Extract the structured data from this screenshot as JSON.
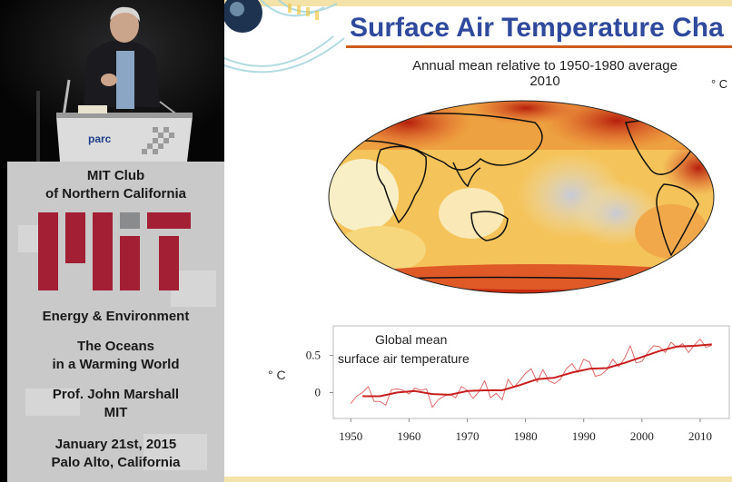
{
  "sidebar": {
    "club_line1": "MIT Club",
    "club_line2": "of Northern California",
    "series": "Energy & Environment",
    "talk_line1": "The Oceans",
    "talk_line2": "in a Warming World",
    "speaker": "Prof. John Marshall",
    "affiliation": "MIT",
    "date": "January 21st, 2015",
    "location": "Palo Alto, California"
  },
  "podium": {
    "logo": "parc"
  },
  "slide": {
    "title": "Surface Air Temperature Cha",
    "map_caption_line1": "Annual mean relative to 1950-1980 average",
    "map_caption_line2": "2010",
    "map_unit": "° C",
    "colors": {
      "title": "#2f4a9c",
      "rule": "#d05b1d",
      "warm": "#d23a12",
      "cool": "#b8b8cc"
    }
  },
  "chart_data": {
    "type": "line",
    "title": "",
    "annotation_line1": "Global mean",
    "annotation_line2": "surface air temperature",
    "ylabel": "° C",
    "xlabel": "",
    "xlim": [
      1947,
      2015
    ],
    "ylim": [
      -0.35,
      0.9
    ],
    "x_ticks": [
      "1950",
      "1960",
      "1970",
      "1980",
      "1990",
      "2000",
      "2010"
    ],
    "y_ticks": [
      "0.5",
      "0"
    ],
    "series": [
      {
        "name": "",
        "style": "annual",
        "color": "#e06a6a",
        "x": [
          1950,
          1951,
          1952,
          1953,
          1954,
          1955,
          1956,
          1957,
          1958,
          1959,
          1960,
          1961,
          1962,
          1963,
          1964,
          1965,
          1966,
          1967,
          1968,
          1969,
          1970,
          1971,
          1972,
          1973,
          1974,
          1975,
          1976,
          1977,
          1978,
          1979,
          1980,
          1981,
          1982,
          1983,
          1984,
          1985,
          1986,
          1987,
          1988,
          1989,
          1990,
          1991,
          1992,
          1993,
          1994,
          1995,
          1996,
          1997,
          1998,
          1999,
          2000,
          2001,
          2002,
          2003,
          2004,
          2005,
          2006,
          2007,
          2008,
          2009,
          2010,
          2011,
          2012
        ],
        "y": [
          -0.15,
          -0.05,
          0.0,
          0.08,
          -0.12,
          -0.12,
          -0.17,
          0.04,
          0.05,
          0.03,
          -0.02,
          0.06,
          0.03,
          0.05,
          -0.2,
          -0.1,
          -0.05,
          -0.02,
          -0.07,
          0.08,
          0.03,
          -0.08,
          0.01,
          0.16,
          -0.07,
          -0.01,
          -0.1,
          0.18,
          0.07,
          0.16,
          0.26,
          0.32,
          0.14,
          0.31,
          0.16,
          0.12,
          0.18,
          0.32,
          0.39,
          0.27,
          0.45,
          0.41,
          0.22,
          0.24,
          0.31,
          0.45,
          0.35,
          0.46,
          0.63,
          0.4,
          0.42,
          0.54,
          0.63,
          0.62,
          0.54,
          0.68,
          0.61,
          0.66,
          0.54,
          0.64,
          0.72,
          0.61,
          0.64
        ]
      },
      {
        "name": "",
        "style": "smoothed",
        "color": "#c81e1e",
        "x": [
          1952,
          1955,
          1958,
          1961,
          1964,
          1967,
          1970,
          1973,
          1976,
          1979,
          1982,
          1985,
          1988,
          1991,
          1994,
          1997,
          2000,
          2003,
          2006,
          2009,
          2012
        ],
        "y": [
          -0.05,
          -0.05,
          0.0,
          0.02,
          -0.02,
          -0.03,
          0.02,
          0.03,
          0.03,
          0.1,
          0.18,
          0.2,
          0.27,
          0.32,
          0.33,
          0.4,
          0.48,
          0.56,
          0.62,
          0.63,
          0.65
        ]
      }
    ]
  }
}
